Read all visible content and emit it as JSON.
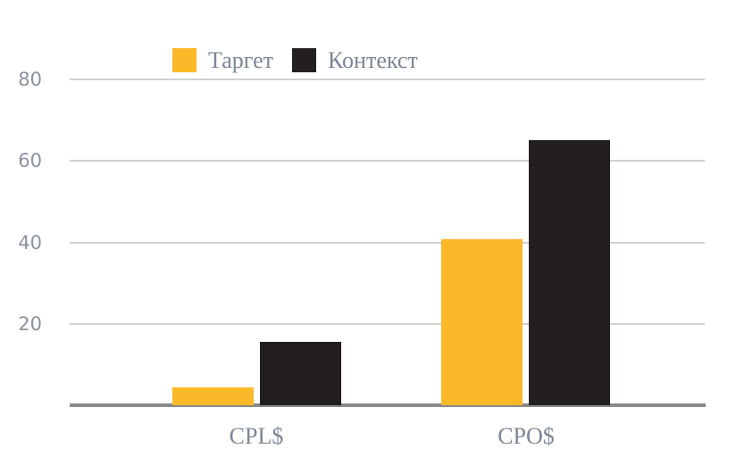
{
  "chart_data": {
    "type": "bar",
    "title": "",
    "xlabel": "",
    "ylabel": "",
    "categories": [
      "CPL$",
      "CPO$"
    ],
    "series": [
      {
        "name": "Таргет",
        "color": "#fbb828",
        "values": [
          4.4,
          40.7
        ]
      },
      {
        "name": "Контекст",
        "color": "#231f20",
        "values": [
          15.6,
          65.2
        ]
      }
    ],
    "ylim": [
      0,
      80
    ],
    "yticks": [
      20,
      40,
      60,
      80
    ],
    "grid": true,
    "legend_position": "top-center"
  },
  "colors": {
    "background": "#ffffff",
    "gridline": "#d1d1d1",
    "axis_line": "#8a8a8a",
    "tick_label": "#8c939e",
    "category_label": "#7c8695"
  }
}
